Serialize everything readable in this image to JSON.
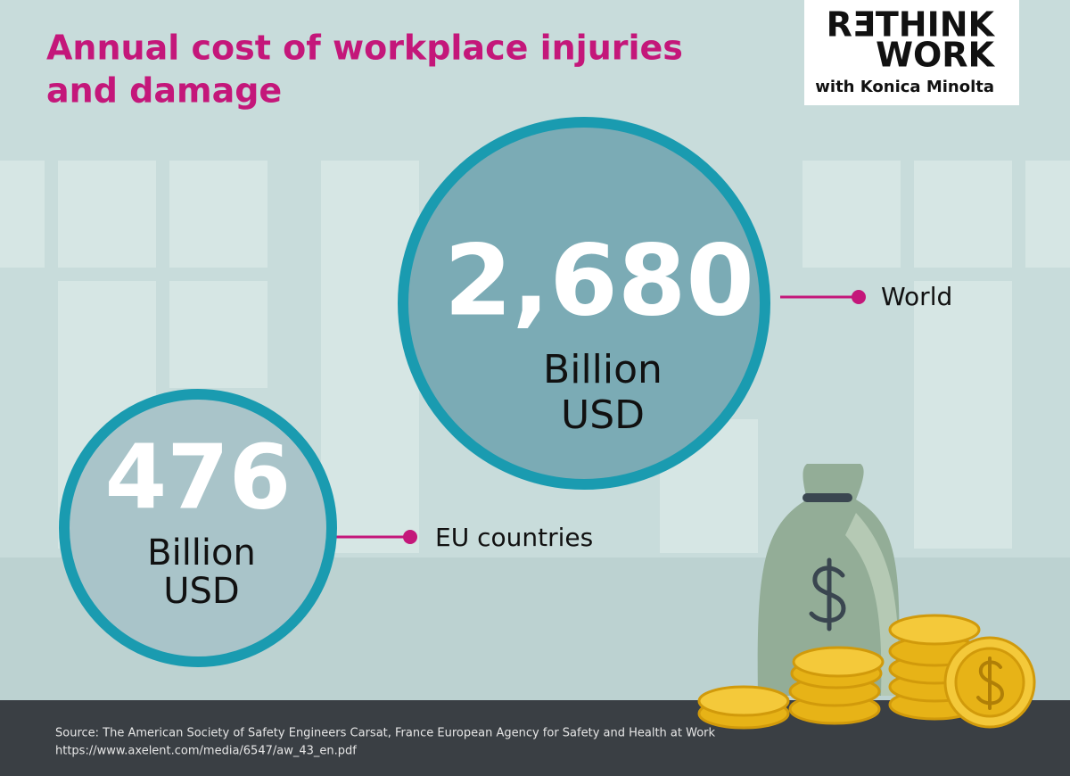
{
  "title": {
    "line1": "Annual cost of workplace injuries",
    "line2": "and damage"
  },
  "logo": {
    "line1": "RƎTHINK",
    "line2": "WORK",
    "line3": "with Konica Minolta"
  },
  "items": [
    {
      "value": "2,680",
      "unit": [
        "Billion",
        "USD"
      ],
      "label": "World"
    },
    {
      "value": "476",
      "unit": [
        "Billion",
        "USD"
      ],
      "label": "EU countries"
    }
  ],
  "source": {
    "line1": "Source: The American Society of Safety Engineers Carsat, France European Agency for Safety and Health at Work",
    "line2": "https://www.axelent.com/media/6547/aw_43_en.pdf"
  }
}
